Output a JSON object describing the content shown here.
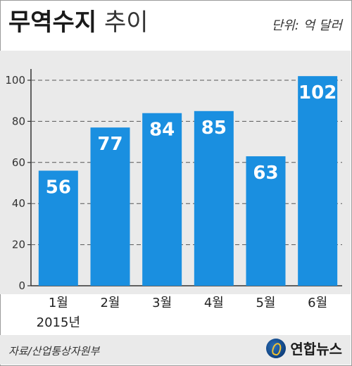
{
  "header": {
    "title_bold": "무역수지",
    "title_light": "추이",
    "unit": "단위: 억 달러"
  },
  "chart_data": {
    "type": "bar",
    "categories": [
      "1월",
      "2월",
      "3월",
      "4월",
      "5월",
      "6월"
    ],
    "values": [
      56,
      77,
      84,
      85,
      63,
      102
    ],
    "year_label": "2015년",
    "ylim": [
      0,
      105
    ],
    "yticks": [
      0,
      20,
      40,
      60,
      80,
      100
    ],
    "grid": true,
    "bar_color": "#1a8fe0",
    "label_color": "#ffffff"
  },
  "footer": {
    "source": "자료/산업통상자원부",
    "logo_text": "연합뉴스"
  }
}
